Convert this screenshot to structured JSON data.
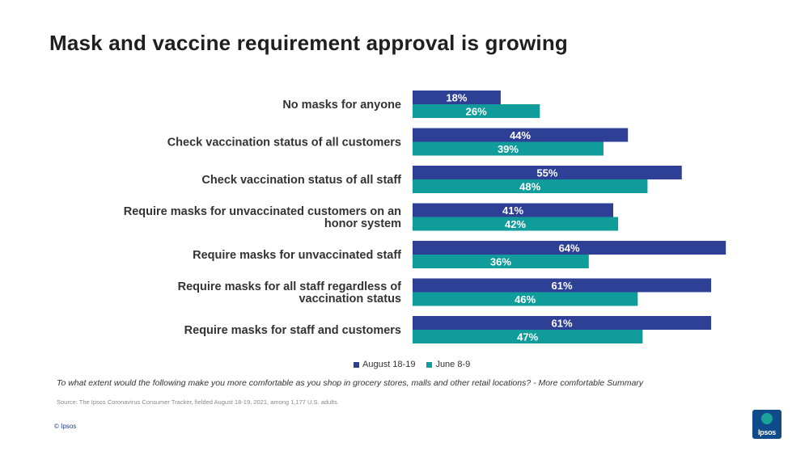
{
  "title": "Mask and vaccine requirement approval is growing",
  "chart_data": {
    "type": "bar",
    "orientation": "horizontal",
    "categories": [
      "No masks for anyone",
      "Check vaccination status of all customers",
      "Check vaccination status of all staff",
      "Require masks for unvaccinated customers on an honor system",
      "Require masks for unvaccinated staff",
      "Require masks for all staff regardless of vaccination status",
      "Require masks for staff and customers"
    ],
    "series": [
      {
        "name": "August 18-19",
        "color": "#2e3f96",
        "values": [
          18,
          44,
          55,
          41,
          64,
          61,
          61
        ]
      },
      {
        "name": "June 8-9",
        "color": "#119c9c",
        "values": [
          26,
          39,
          48,
          42,
          36,
          46,
          47
        ]
      }
    ],
    "value_suffix": "%",
    "xlim": [
      0,
      100
    ],
    "grid": false,
    "legend_position": "bottom"
  },
  "legend": {
    "aug_label": "August 18-19",
    "jun_label": "June 8-9"
  },
  "question": "To what extent would the following make you more comfortable as you shop in grocery stores, malls and other retail locations? - More comfortable Summary",
  "source": "Source: The Ipsos Coronavirus Consumer Tracker, fielded August 18-19, 2021, among 1,177 U.S. adults.",
  "copyright": "© Ipsos",
  "logo_text": "Ipsos"
}
